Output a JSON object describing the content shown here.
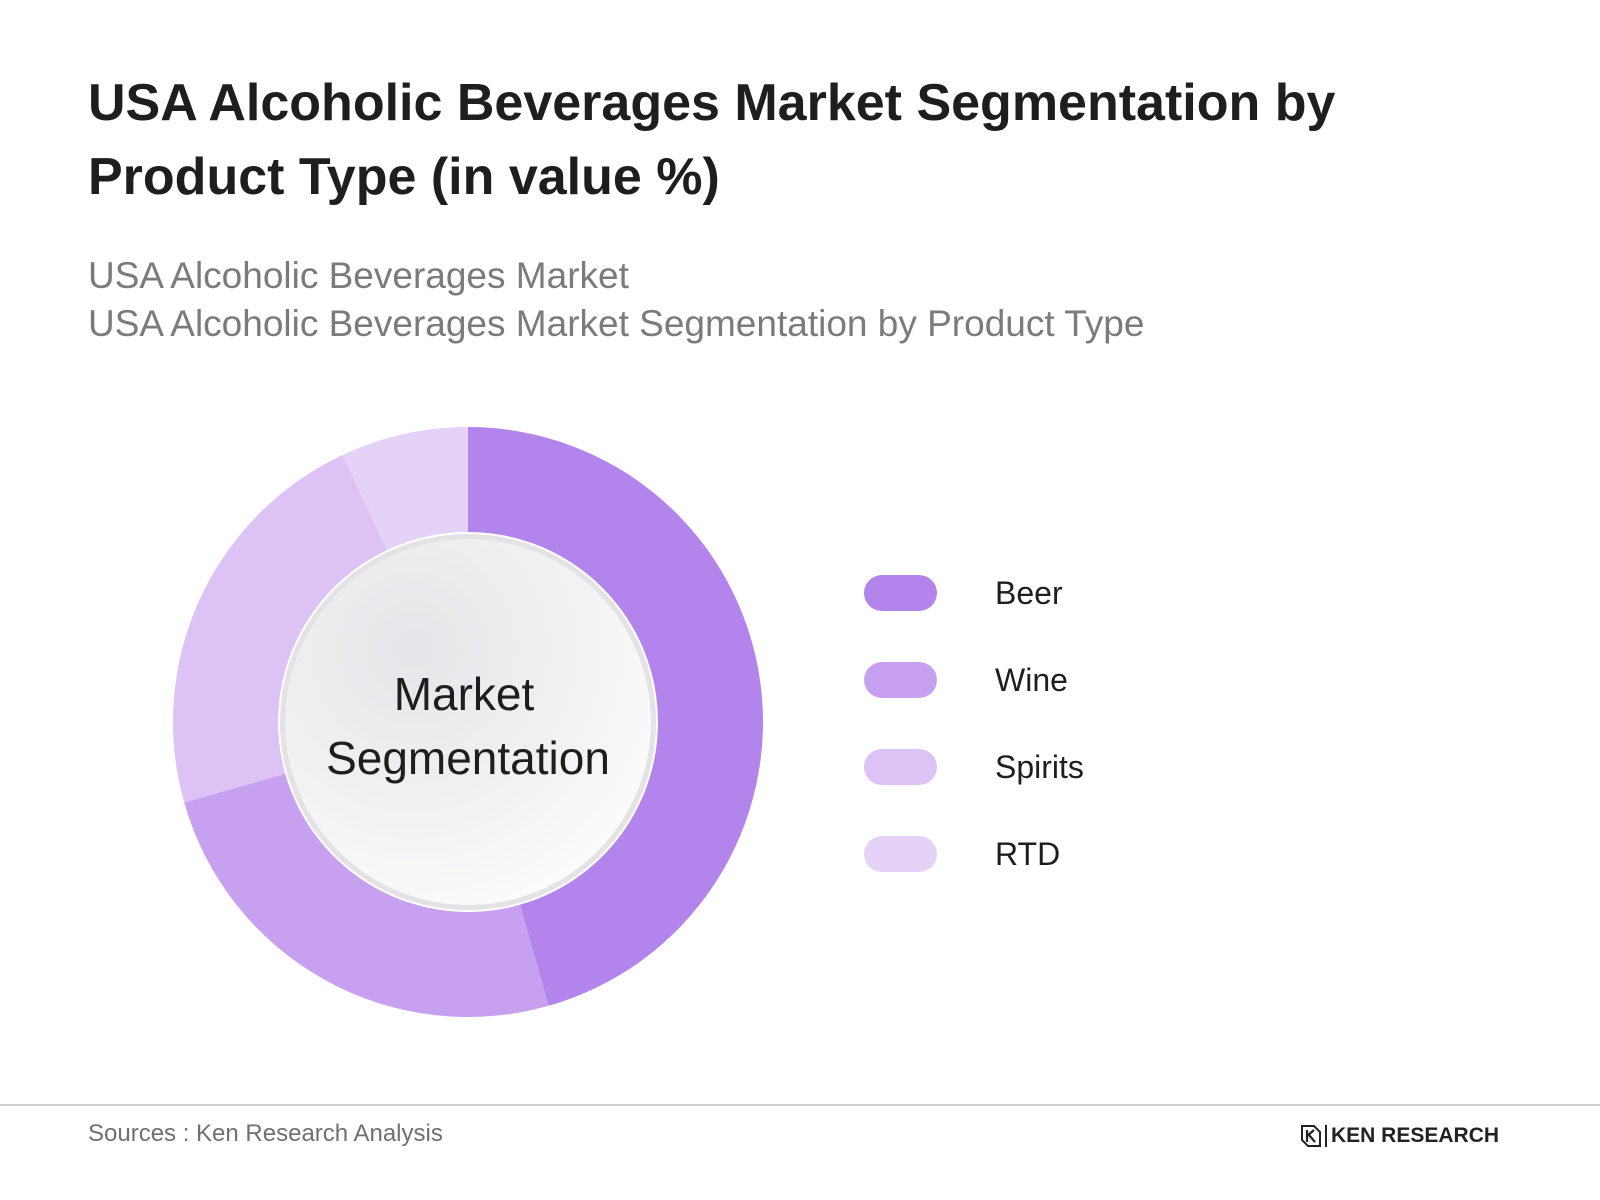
{
  "header": {
    "title": "USA Alcoholic Beverages Market Segmentation by Product Type (in value %)",
    "subtitle_line1": "USA Alcoholic Beverages Market",
    "subtitle_line2": "USA Alcoholic Beverages Market Segmentation by Product Type"
  },
  "footer": {
    "source": "Sources : Ken Research Analysis",
    "logo_text": "KEN RESEARCH"
  },
  "chart_data": {
    "type": "pie",
    "variant": "donut",
    "center_label_line1": "Market",
    "center_label_line2": "Segmentation",
    "legend_position": "right",
    "categories": [
      "Beer",
      "Wine",
      "Spirits",
      "RTD"
    ],
    "values": [
      45.6,
      25.0,
      22.4,
      7.0
    ],
    "colors": [
      "#b385ec",
      "#c7a0ef",
      "#dcc2f5",
      "#e4d2f7"
    ]
  }
}
